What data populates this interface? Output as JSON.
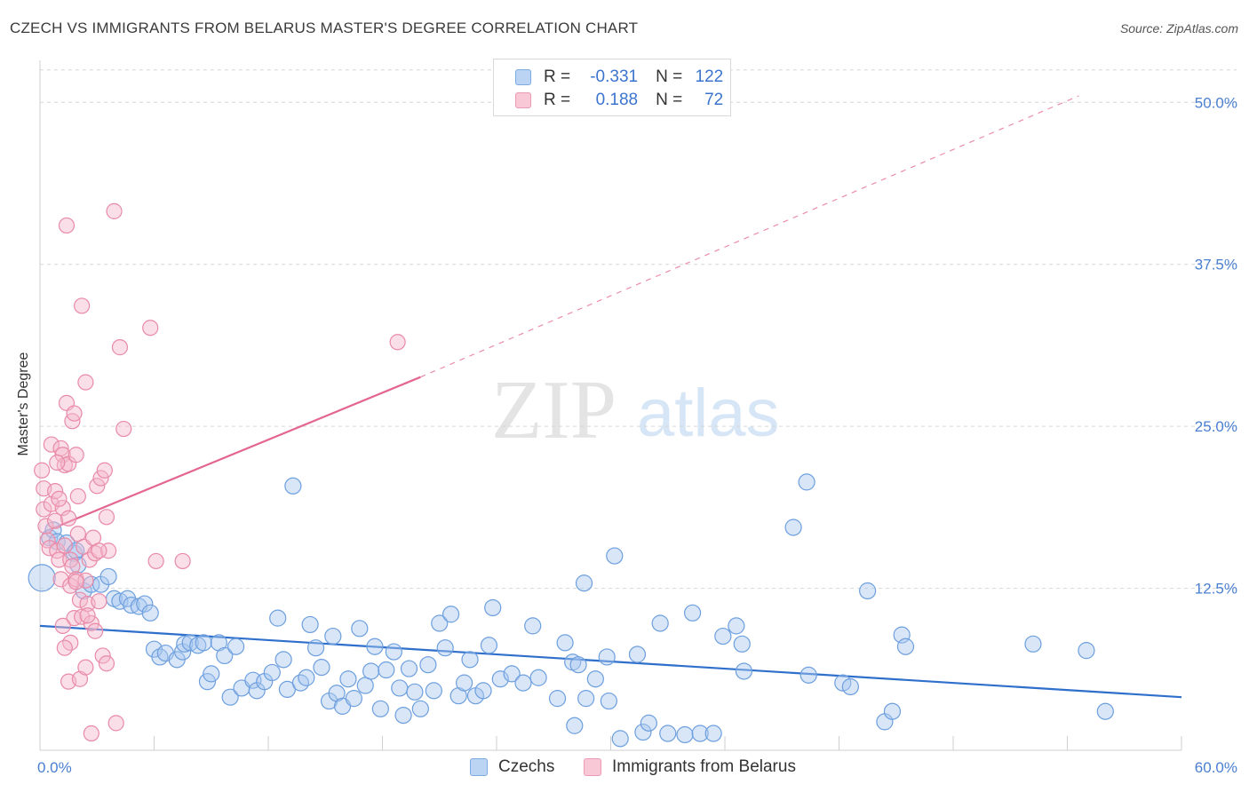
{
  "title": "CZECH VS IMMIGRANTS FROM BELARUS MASTER'S DEGREE CORRELATION CHART",
  "source": "Source: ZipAtlas.com",
  "watermark": {
    "zip": "ZIP",
    "atlas": "atlas"
  },
  "colors": {
    "blue_fill": "#a9c8ef",
    "blue_stroke": "#6d9fde",
    "blue_line": "#2f6fcc",
    "pink_fill": "#f5b8cb",
    "pink_stroke": "#e98aa8",
    "pink_line": "#e46690",
    "axis_text": "#4a7fd0",
    "grid": "#d6d6d6"
  },
  "legend": {
    "rows": [
      {
        "series": "Czechs",
        "r_label": "R =",
        "r_value": "-0.331",
        "n_label": "N =",
        "n_value": "122"
      },
      {
        "series": "Immigrants from Belarus",
        "r_label": "R =",
        "r_value": "0.188",
        "n_label": "N =",
        "n_value": "72"
      }
    ]
  },
  "chart_data": {
    "type": "scatter",
    "title": "CZECH VS IMMIGRANTS FROM BELARUS MASTER'S DEGREE CORRELATION CHART",
    "xlabel": "",
    "ylabel": "Master's Degree",
    "xlim": [
      0,
      60
    ],
    "ylim": [
      0,
      52.5
    ],
    "x_ticks": [
      0,
      6,
      12,
      18,
      24,
      30,
      36,
      42,
      48,
      54,
      60
    ],
    "x_tick_labels": {
      "0": "0.0%",
      "60": "60.0%"
    },
    "y_ticks": [
      12.5,
      25.0,
      37.5,
      50.0
    ],
    "y_tick_labels": [
      "12.5%",
      "25.0%",
      "37.5%",
      "50.0%"
    ],
    "grid": true,
    "legend_position": "bottom-center",
    "series": [
      {
        "name": "Czechs",
        "r": -0.331,
        "n": 122,
        "trend": {
          "x1": 0,
          "y1": 9.6,
          "x2": 60,
          "y2": 4.1
        },
        "points": [
          [
            0.1,
            13.3
          ],
          [
            0.5,
            16.4
          ],
          [
            0.7,
            17.0
          ],
          [
            0.9,
            16.1
          ],
          [
            1.4,
            16.0
          ],
          [
            1.8,
            15.2
          ],
          [
            1.9,
            15.4
          ],
          [
            2.0,
            14.3
          ],
          [
            2.3,
            12.3
          ],
          [
            2.7,
            12.8
          ],
          [
            3.2,
            12.8
          ],
          [
            3.6,
            13.4
          ],
          [
            3.9,
            11.7
          ],
          [
            4.2,
            11.5
          ],
          [
            4.6,
            11.7
          ],
          [
            4.8,
            11.2
          ],
          [
            5.2,
            11.1
          ],
          [
            5.5,
            11.3
          ],
          [
            5.8,
            10.6
          ],
          [
            6.0,
            7.8
          ],
          [
            6.3,
            7.2
          ],
          [
            6.6,
            7.5
          ],
          [
            7.2,
            7.0
          ],
          [
            7.5,
            7.6
          ],
          [
            7.6,
            8.2
          ],
          [
            7.9,
            8.3
          ],
          [
            8.3,
            8.1
          ],
          [
            8.6,
            8.3
          ],
          [
            8.8,
            5.3
          ],
          [
            9.0,
            5.9
          ],
          [
            9.4,
            8.3
          ],
          [
            9.7,
            7.3
          ],
          [
            10.0,
            4.1
          ],
          [
            10.3,
            8.0
          ],
          [
            10.6,
            4.8
          ],
          [
            11.2,
            5.4
          ],
          [
            11.4,
            4.6
          ],
          [
            11.8,
            5.3
          ],
          [
            12.2,
            6.0
          ],
          [
            12.5,
            10.2
          ],
          [
            12.8,
            7.0
          ],
          [
            13.0,
            4.7
          ],
          [
            13.3,
            20.4
          ],
          [
            13.7,
            5.2
          ],
          [
            14.0,
            5.6
          ],
          [
            14.2,
            9.7
          ],
          [
            14.5,
            7.9
          ],
          [
            14.8,
            6.4
          ],
          [
            15.2,
            3.8
          ],
          [
            15.4,
            8.8
          ],
          [
            15.6,
            4.4
          ],
          [
            15.9,
            3.4
          ],
          [
            16.2,
            5.5
          ],
          [
            16.5,
            4.0
          ],
          [
            16.8,
            9.4
          ],
          [
            17.1,
            5.0
          ],
          [
            17.4,
            6.1
          ],
          [
            17.6,
            8.0
          ],
          [
            17.9,
            3.2
          ],
          [
            18.2,
            6.2
          ],
          [
            18.6,
            7.6
          ],
          [
            18.9,
            4.8
          ],
          [
            19.1,
            2.7
          ],
          [
            19.4,
            6.3
          ],
          [
            19.7,
            4.5
          ],
          [
            20.0,
            3.2
          ],
          [
            20.4,
            6.6
          ],
          [
            20.7,
            4.6
          ],
          [
            21.0,
            9.8
          ],
          [
            21.3,
            7.9
          ],
          [
            21.6,
            10.5
          ],
          [
            22.0,
            4.2
          ],
          [
            22.3,
            5.2
          ],
          [
            22.6,
            7.0
          ],
          [
            22.9,
            4.2
          ],
          [
            23.3,
            4.6
          ],
          [
            23.6,
            8.1
          ],
          [
            23.8,
            11.0
          ],
          [
            24.2,
            5.5
          ],
          [
            24.8,
            5.9
          ],
          [
            25.4,
            5.2
          ],
          [
            25.9,
            9.6
          ],
          [
            26.2,
            5.6
          ],
          [
            27.2,
            4.0
          ],
          [
            27.6,
            8.3
          ],
          [
            28.0,
            6.8
          ],
          [
            28.6,
            12.9
          ],
          [
            28.3,
            6.6
          ],
          [
            28.7,
            4.0
          ],
          [
            28.1,
            1.9
          ],
          [
            29.2,
            5.5
          ],
          [
            29.8,
            7.2
          ],
          [
            29.9,
            3.8
          ],
          [
            30.2,
            15.0
          ],
          [
            31.4,
            7.4
          ],
          [
            30.5,
            0.9
          ],
          [
            32.6,
            9.8
          ],
          [
            31.7,
            1.4
          ],
          [
            32.0,
            2.1
          ],
          [
            33.0,
            1.3
          ],
          [
            34.3,
            10.6
          ],
          [
            33.9,
            1.2
          ],
          [
            34.7,
            1.3
          ],
          [
            35.4,
            1.3
          ],
          [
            35.9,
            8.8
          ],
          [
            36.6,
            9.6
          ],
          [
            37.0,
            6.1
          ],
          [
            36.9,
            8.2
          ],
          [
            39.6,
            17.2
          ],
          [
            40.3,
            20.7
          ],
          [
            40.4,
            5.8
          ],
          [
            42.2,
            5.2
          ],
          [
            42.6,
            4.9
          ],
          [
            43.5,
            12.3
          ],
          [
            44.4,
            2.2
          ],
          [
            44.8,
            3.0
          ],
          [
            45.3,
            8.9
          ],
          [
            45.5,
            8.0
          ],
          [
            52.2,
            8.2
          ],
          [
            55.0,
            7.7
          ],
          [
            56.0,
            3.0
          ]
        ]
      },
      {
        "name": "Immigrants from Belarus",
        "r": 0.188,
        "n": 72,
        "trend": {
          "x1": 0.3,
          "y1": 16.9,
          "x2": 20.0,
          "y2": 28.8
        },
        "trend_extension": {
          "x1": 20.0,
          "y1": 28.8,
          "x2": 54.6,
          "y2": 50.5
        },
        "points": [
          [
            0.1,
            21.6
          ],
          [
            0.2,
            20.2
          ],
          [
            0.2,
            18.6
          ],
          [
            0.3,
            17.3
          ],
          [
            0.4,
            16.2
          ],
          [
            0.5,
            15.6
          ],
          [
            0.6,
            23.6
          ],
          [
            0.6,
            19.0
          ],
          [
            0.8,
            20.0
          ],
          [
            0.8,
            17.7
          ],
          [
            0.9,
            15.4
          ],
          [
            1.0,
            14.7
          ],
          [
            1.1,
            23.3
          ],
          [
            1.1,
            13.2
          ],
          [
            1.2,
            22.8
          ],
          [
            1.2,
            18.7
          ],
          [
            1.3,
            22.0
          ],
          [
            1.3,
            15.8
          ],
          [
            1.4,
            26.8
          ],
          [
            1.4,
            40.5
          ],
          [
            1.5,
            22.1
          ],
          [
            1.5,
            17.9
          ],
          [
            1.6,
            14.7
          ],
          [
            1.6,
            12.7
          ],
          [
            1.7,
            25.4
          ],
          [
            1.7,
            14.2
          ],
          [
            1.8,
            26.0
          ],
          [
            1.8,
            10.2
          ],
          [
            1.9,
            22.8
          ],
          [
            1.9,
            13.2
          ],
          [
            2.0,
            19.6
          ],
          [
            2.0,
            16.7
          ],
          [
            2.1,
            11.6
          ],
          [
            2.2,
            34.3
          ],
          [
            2.2,
            10.3
          ],
          [
            2.3,
            15.7
          ],
          [
            2.4,
            28.4
          ],
          [
            2.4,
            13.1
          ],
          [
            2.5,
            11.3
          ],
          [
            2.6,
            14.7
          ],
          [
            2.7,
            9.8
          ],
          [
            2.8,
            16.4
          ],
          [
            2.9,
            15.2
          ],
          [
            3.0,
            20.4
          ],
          [
            3.1,
            11.5
          ],
          [
            3.2,
            21.0
          ],
          [
            3.3,
            7.3
          ],
          [
            3.4,
            21.6
          ],
          [
            3.5,
            18.0
          ],
          [
            3.6,
            15.4
          ],
          [
            3.9,
            41.6
          ],
          [
            4.2,
            31.1
          ],
          [
            4.4,
            24.8
          ],
          [
            5.8,
            32.6
          ],
          [
            6.1,
            14.6
          ],
          [
            7.5,
            14.6
          ],
          [
            18.8,
            31.5
          ],
          [
            0.9,
            22.2
          ],
          [
            1.5,
            5.3
          ],
          [
            1.9,
            13.0
          ],
          [
            2.5,
            10.4
          ],
          [
            2.7,
            1.3
          ],
          [
            2.9,
            9.2
          ],
          [
            3.1,
            15.4
          ],
          [
            3.5,
            6.7
          ],
          [
            4.0,
            2.1
          ],
          [
            1.2,
            9.6
          ],
          [
            1.6,
            8.3
          ],
          [
            1.3,
            7.9
          ],
          [
            2.1,
            5.5
          ],
          [
            2.4,
            6.4
          ],
          [
            1.0,
            19.4
          ]
        ]
      }
    ]
  }
}
